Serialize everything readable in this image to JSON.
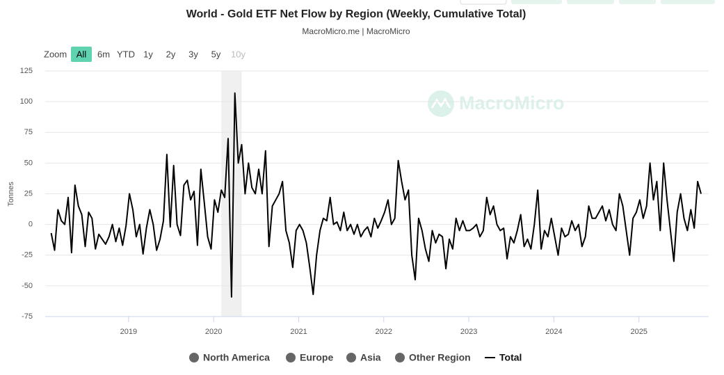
{
  "chart_data": {
    "type": "line",
    "title": "World - Gold ETF Net Flow by Region (Weekly, Cumulative Total)",
    "subtitle": "MacroMicro.me | MacroMicro",
    "watermark": "MacroMicro",
    "ylabel": "Tonnes",
    "zoom": {
      "label": "Zoom",
      "buttons": [
        {
          "label": "All",
          "active": true
        },
        {
          "label": "6m"
        },
        {
          "label": "YTD"
        },
        {
          "label": "1y"
        },
        {
          "label": "2y"
        },
        {
          "label": "3y"
        },
        {
          "label": "5y"
        },
        {
          "label": "10y",
          "disabled": true
        }
      ]
    },
    "legend_items": [
      {
        "name": "North America",
        "color": "#666666",
        "hidden": true
      },
      {
        "name": "Europe",
        "color": "#666666",
        "hidden": true
      },
      {
        "name": "Asia",
        "color": "#666666",
        "hidden": true
      },
      {
        "name": "Other Region",
        "color": "#666666",
        "hidden": true
      }
    ],
    "grid": true,
    "plot_band": [
      2020.09,
      2020.33
    ],
    "xlim": [
      2018.02,
      2025.82
    ],
    "xticks": [
      2019,
      2020,
      2021,
      2022,
      2023,
      2024,
      2025
    ],
    "ylim": [
      -75,
      125
    ],
    "yticks": [
      -75,
      -50,
      -25,
      0,
      25,
      50,
      75,
      100,
      125
    ],
    "x": [
      2018.09,
      2018.13,
      2018.17,
      2018.21,
      2018.25,
      2018.29,
      2018.33,
      2018.37,
      2018.41,
      2018.45,
      2018.49,
      2018.53,
      2018.57,
      2018.61,
      2018.65,
      2018.69,
      2018.73,
      2018.77,
      2018.81,
      2018.85,
      2018.89,
      2018.93,
      2018.97,
      2019.01,
      2019.05,
      2019.09,
      2019.13,
      2019.17,
      2019.21,
      2019.25,
      2019.29,
      2019.33,
      2019.37,
      2019.41,
      2019.45,
      2019.49,
      2019.53,
      2019.57,
      2019.61,
      2019.65,
      2019.69,
      2019.73,
      2019.77,
      2019.81,
      2019.85,
      2019.89,
      2019.93,
      2019.97,
      2020.01,
      2020.05,
      2020.09,
      2020.13,
      2020.17,
      2020.21,
      2020.25,
      2020.29,
      2020.33,
      2020.37,
      2020.41,
      2020.45,
      2020.49,
      2020.53,
      2020.57,
      2020.61,
      2020.65,
      2020.69,
      2020.73,
      2020.77,
      2020.81,
      2020.85,
      2020.89,
      2020.93,
      2020.97,
      2021.01,
      2021.05,
      2021.09,
      2021.13,
      2021.17,
      2021.21,
      2021.25,
      2021.29,
      2021.33,
      2021.37,
      2021.41,
      2021.45,
      2021.49,
      2021.53,
      2021.57,
      2021.61,
      2021.65,
      2021.69,
      2021.73,
      2021.77,
      2021.81,
      2021.85,
      2021.89,
      2021.93,
      2021.97,
      2022.01,
      2022.05,
      2022.09,
      2022.13,
      2022.17,
      2022.21,
      2022.25,
      2022.29,
      2022.33,
      2022.37,
      2022.41,
      2022.45,
      2022.49,
      2022.53,
      2022.57,
      2022.61,
      2022.65,
      2022.69,
      2022.73,
      2022.77,
      2022.81,
      2022.85,
      2022.89,
      2022.93,
      2022.97,
      2023.01,
      2023.05,
      2023.09,
      2023.13,
      2023.17,
      2023.21,
      2023.25,
      2023.29,
      2023.33,
      2023.37,
      2023.41,
      2023.45,
      2023.49,
      2023.53,
      2023.57,
      2023.61,
      2023.65,
      2023.69,
      2023.73,
      2023.77,
      2023.81,
      2023.85,
      2023.89,
      2023.93,
      2023.97,
      2024.01,
      2024.05,
      2024.09,
      2024.13,
      2024.17,
      2024.21,
      2024.25,
      2024.29,
      2024.33,
      2024.37,
      2024.41,
      2024.45,
      2024.49,
      2024.53,
      2024.57,
      2024.61,
      2024.65,
      2024.69,
      2024.73,
      2024.77,
      2024.81,
      2024.85,
      2024.89,
      2024.93,
      2024.97,
      2025.01,
      2025.05,
      2025.09,
      2025.13,
      2025.17,
      2025.21,
      2025.25,
      2025.29,
      2025.33,
      2025.37,
      2025.41,
      2025.45,
      2025.49,
      2025.53,
      2025.57,
      2025.61,
      2025.65,
      2025.69,
      2025.73
    ],
    "series": [
      {
        "name": "Total",
        "color": "#000000",
        "values": [
          -7,
          -21,
          12,
          3,
          0,
          22,
          -23,
          32,
          15,
          8,
          -18,
          10,
          5,
          -20,
          -8,
          -12,
          -16,
          -10,
          0,
          -14,
          -3,
          -17,
          -1,
          25,
          12,
          -10,
          0,
          -24,
          -3,
          12,
          0,
          -21,
          -12,
          3,
          57,
          -2,
          48,
          0,
          -9,
          32,
          36,
          20,
          27,
          -17,
          45,
          18,
          -10,
          -20,
          20,
          10,
          28,
          22,
          70,
          -59,
          107,
          50,
          65,
          25,
          50,
          30,
          25,
          45,
          25,
          60,
          -18,
          15,
          20,
          25,
          35,
          -5,
          -15,
          -35,
          -5,
          0,
          -5,
          -15,
          -35,
          -57,
          -25,
          -5,
          5,
          3,
          22,
          0,
          2,
          -5,
          10,
          -5,
          0,
          -8,
          0,
          -10,
          -5,
          -2,
          -10,
          5,
          -3,
          3,
          10,
          20,
          0,
          5,
          52,
          35,
          20,
          28,
          -25,
          -45,
          5,
          -5,
          -20,
          -30,
          -5,
          -15,
          -8,
          -10,
          -36,
          -12,
          -20,
          5,
          -5,
          3,
          -5,
          -5,
          -3,
          0,
          -10,
          -5,
          22,
          8,
          15,
          0,
          -5,
          -3,
          -28,
          -10,
          -15,
          -5,
          8,
          -18,
          -12,
          -20,
          0,
          28,
          -20,
          -5,
          -10,
          5,
          -10,
          -25,
          -3,
          -10,
          -8,
          3,
          -5,
          0,
          -18,
          -10,
          15,
          5,
          5,
          10,
          15,
          3,
          12,
          0,
          -5,
          25,
          15,
          -5,
          -25,
          5,
          10,
          20,
          5,
          15,
          50,
          20,
          35,
          -5,
          50,
          20,
          -5,
          -30,
          10,
          25,
          5,
          -5,
          12,
          -3,
          35,
          25
        ]
      }
    ]
  }
}
